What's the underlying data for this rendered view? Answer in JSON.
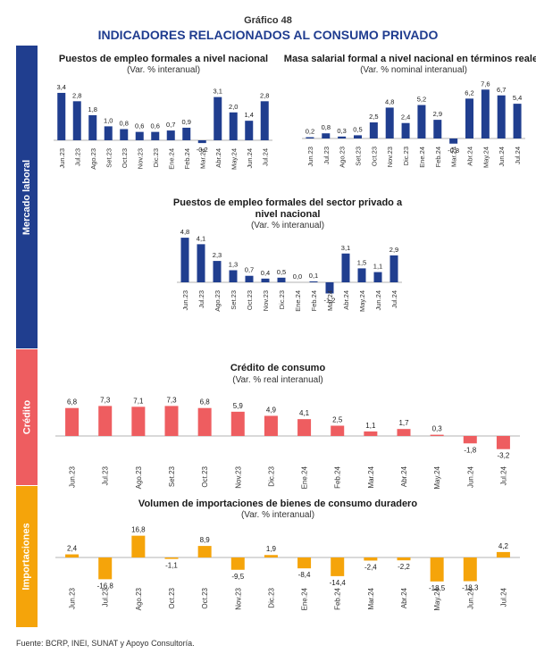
{
  "figure": {
    "label": "Gráfico 48",
    "title": "INDICADORES RELACIONADOS AL CONSUMO PRIVADO",
    "source": "Fuente: BCRP, INEI, SUNAT y Apoyo Consultoría."
  },
  "sections": {
    "labor": "Mercado laboral",
    "credit": "Crédito",
    "imports": "Importaciones"
  },
  "colors": {
    "labor": "#203e8f",
    "credit": "#ee5d60",
    "imports": "#f5a40a"
  },
  "chart_data": [
    {
      "id": "formal-jobs-national",
      "type": "bar",
      "title": "Puestos de empleo formales a nivel nacional",
      "subtitle": "(Var. % interanual)",
      "categories": [
        "Jun.23",
        "Jul.23",
        "Ago.23",
        "Set.23",
        "Oct.23",
        "Nov.23",
        "Dic.23",
        "Ene.24",
        "Feb.24",
        "Mar.24",
        "Abr.24",
        "May.24",
        "Jun.24",
        "Jul.24"
      ],
      "values": [
        3.4,
        2.8,
        1.8,
        1.0,
        0.8,
        0.6,
        0.6,
        0.7,
        0.9,
        -0.2,
        3.1,
        2.0,
        1.4,
        2.8
      ],
      "value_labels": [
        "3,4",
        "2,8",
        "1,8",
        "1,0",
        "0,8",
        "0,6",
        "0,6",
        "0,7",
        "0,9",
        "-0,2",
        "3,1",
        "2,0",
        "1,4",
        "2,8"
      ],
      "color": "#203e8f"
    },
    {
      "id": "formal-payroll-real",
      "type": "bar",
      "title": "Masa salarial formal a nivel nacional en términos reales",
      "subtitle": "(Var. % nominal interanual)",
      "categories": [
        "Jun.23",
        "Jul.23",
        "Ago.23",
        "Set.23",
        "Oct.23",
        "Nov.23",
        "Dic.23",
        "Ene.24",
        "Feb.24",
        "Mar.24",
        "Abr.24",
        "May.24",
        "Jun.24",
        "Jul.24"
      ],
      "values": [
        0.2,
        0.8,
        0.3,
        0.5,
        2.5,
        4.8,
        2.4,
        5.2,
        2.9,
        -0.8,
        6.2,
        7.6,
        6.7,
        5.4
      ],
      "value_labels": [
        "0,2",
        "0,8",
        "0,3",
        "0,5",
        "2,5",
        "4,8",
        "2,4",
        "5,2",
        "2,9",
        "-0,8",
        "6,2",
        "7,6",
        "6,7",
        "5,4"
      ],
      "color": "#203e8f"
    },
    {
      "id": "formal-jobs-private",
      "type": "bar",
      "title": "Puestos de empleo formales del sector privado a nivel nacional",
      "subtitle": "(Var. % interanual)",
      "categories": [
        "Jun.23",
        "Jul.23",
        "Ago.23",
        "Set.23",
        "Oct.23",
        "Nov.23",
        "Dic.23",
        "Ene.24",
        "Feb.24",
        "Mar.24",
        "Abr.24",
        "May.24",
        "Jun.24",
        "Jul.24"
      ],
      "values": [
        4.8,
        4.1,
        2.3,
        1.3,
        0.7,
        0.4,
        0.5,
        0.0,
        0.1,
        -1.2,
        3.1,
        1.5,
        1.1,
        2.9
      ],
      "value_labels": [
        "4,8",
        "4,1",
        "2,3",
        "1,3",
        "0,7",
        "0,4",
        "0,5",
        "0,0",
        "0,1",
        "-1,2",
        "3,1",
        "1,5",
        "1,1",
        "2,9"
      ],
      "color": "#203e8f"
    },
    {
      "id": "consumer-credit",
      "type": "bar",
      "title": "Crédito de consumo",
      "subtitle": "(Var. % real interanual)",
      "categories": [
        "Jun.23",
        "Jul.23",
        "Ago.23",
        "Set.23",
        "Oct.23",
        "Nov.23",
        "Dic.23",
        "Ene.24",
        "Feb.24",
        "Mar.24",
        "Abr.24",
        "May.24",
        "Jun.24",
        "Jul.24"
      ],
      "values": [
        6.8,
        7.3,
        7.1,
        7.3,
        6.8,
        5.9,
        4.9,
        4.1,
        2.5,
        1.1,
        1.7,
        0.3,
        -1.8,
        -3.2
      ],
      "value_labels": [
        "6,8",
        "7,3",
        "7,1",
        "7,3",
        "6,8",
        "5,9",
        "4,9",
        "4,1",
        "2,5",
        "1,1",
        "1,7",
        "0,3",
        "-1,8",
        "-3,2"
      ],
      "color": "#ee5d60"
    },
    {
      "id": "durable-imports",
      "type": "bar",
      "title": "Volumen de importaciones de bienes de consumo duradero",
      "subtitle": "(Var. % interanual)",
      "categories": [
        "Jun.23",
        "Jul.23",
        "Ago.23",
        "Oct.23",
        "Oct.23",
        "Nov.23",
        "Dic.23",
        "Ene.24",
        "Feb.24",
        "Mar.24",
        "Abr.24",
        "May.24",
        "Jun.24",
        "Jul.24"
      ],
      "values": [
        2.4,
        -16.8,
        16.8,
        -1.1,
        8.9,
        -9.5,
        1.9,
        -8.4,
        -14.4,
        -2.4,
        -2.2,
        -18.5,
        -18.3,
        4.2
      ],
      "value_labels": [
        "2,4",
        "-16,8",
        "16,8",
        "-1,1",
        "8,9",
        "-9,5",
        "1,9",
        "-8,4",
        "-14,4",
        "-2,4",
        "-2,2",
        "-18,5",
        "-18,3",
        "4,2"
      ],
      "color": "#f5a40a"
    }
  ]
}
